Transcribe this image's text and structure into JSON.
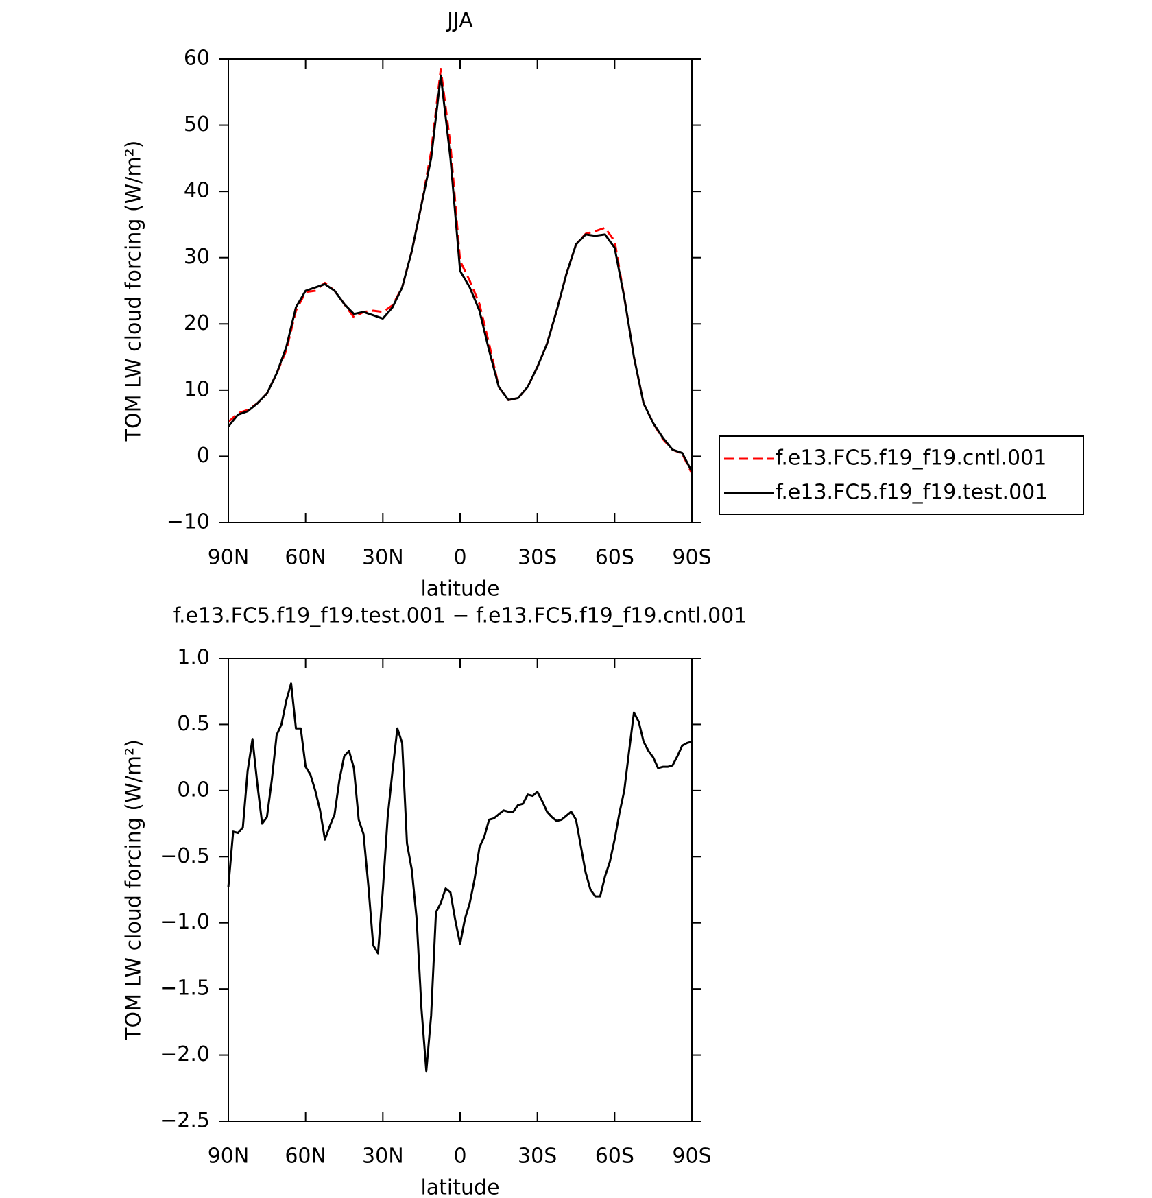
{
  "chart_data": [
    {
      "type": "line",
      "title": "JJA",
      "x_label": "latitude",
      "y_label": "TOM LW cloud forcing (W/m²)",
      "x": [
        90,
        86.25,
        82.5,
        78.75,
        75,
        71.25,
        67.5,
        63.75,
        60,
        56.25,
        52.5,
        48.75,
        45,
        41.25,
        37.5,
        33.75,
        30,
        26.25,
        22.5,
        18.75,
        15,
        11.25,
        7.5,
        3.75,
        0,
        -3.75,
        -7.5,
        -11.25,
        -15,
        -18.75,
        -22.5,
        -26.25,
        -30,
        -33.75,
        -37.5,
        -41.25,
        -45,
        -48.75,
        -52.5,
        -56.25,
        -60,
        -63.75,
        -67.5,
        -71.25,
        -75,
        -78.75,
        -82.5,
        -86.25,
        -90
      ],
      "series": [
        {
          "name": "f.e13.FC5.f19_f19.cntl.001",
          "color": "#ff0000",
          "dash": "dashed",
          "values": [
            5.2,
            6.5,
            7,
            8,
            9.5,
            12.5,
            16,
            22,
            24.8,
            25,
            26.2,
            25,
            23,
            21,
            21.8,
            22,
            21.8,
            22.8,
            25.5,
            31,
            38,
            46,
            58.5,
            47,
            29.5,
            26.5,
            23,
            17,
            10.5,
            8.5,
            8.8,
            10.5,
            13.5,
            17,
            22,
            27.5,
            32,
            33.6,
            34,
            34.5,
            32.5,
            24,
            15,
            8,
            5,
            2.6,
            1,
            0.4,
            -2.6
          ]
        },
        {
          "name": "f.e13.FC5.f19_f19.test.001",
          "color": "#000000",
          "dash": "solid",
          "values": [
            4.5,
            6.3,
            6.8,
            8,
            9.5,
            12.5,
            16.5,
            22.5,
            25,
            25.5,
            26,
            25,
            23,
            21.5,
            21.8,
            21.3,
            20.8,
            22.5,
            25.5,
            31,
            38,
            45,
            57.5,
            45,
            28,
            25.5,
            22,
            16,
            10.5,
            8.5,
            8.8,
            10.5,
            13.5,
            17,
            22,
            27.5,
            32,
            33.5,
            33.3,
            33.5,
            31.5,
            24,
            15,
            8,
            5,
            2.8,
            1,
            0.5,
            -2.3
          ]
        }
      ],
      "xlim": [
        90,
        -90
      ],
      "xticks": [
        {
          "value": 90,
          "label": "90N"
        },
        {
          "value": 60,
          "label": "60N"
        },
        {
          "value": 30,
          "label": "30N"
        },
        0,
        {
          "value": -30,
          "label": "30S"
        },
        {
          "value": -60,
          "label": "60S"
        },
        {
          "value": -90,
          "label": "90S"
        }
      ],
      "ylim": [
        -10,
        60
      ],
      "yticks": [
        {
          "value": -10,
          "label": "−10"
        },
        0,
        10,
        20,
        30,
        40,
        50,
        60
      ],
      "legend": "right"
    },
    {
      "type": "line",
      "title": "f.e13.FC5.f19_f19.test.001 − f.e13.FC5.f19_f19.cntl.001",
      "x_label": "latitude",
      "y_label": "TOM LW cloud forcing (W/m²)",
      "x": [
        90,
        88.125,
        86.25,
        84.375,
        82.5,
        80.625,
        78.75,
        76.875,
        75,
        73.125,
        71.25,
        69.375,
        67.5,
        65.625,
        63.75,
        61.875,
        60,
        58.125,
        56.25,
        54.375,
        52.5,
        50.625,
        48.75,
        46.875,
        45,
        43.125,
        41.25,
        39.375,
        37.5,
        35.625,
        33.75,
        31.875,
        30,
        28.125,
        26.25,
        24.375,
        22.5,
        20.625,
        18.75,
        16.875,
        15,
        13.125,
        11.25,
        9.375,
        7.5,
        5.625,
        3.75,
        1.875,
        0,
        -1.875,
        -3.75,
        -5.625,
        -7.5,
        -9.375,
        -11.25,
        -13.125,
        -15,
        -16.875,
        -18.75,
        -20.625,
        -22.5,
        -24.375,
        -26.25,
        -28.125,
        -30,
        -31.875,
        -33.75,
        -35.625,
        -37.5,
        -39.375,
        -41.25,
        -43.125,
        -45,
        -46.875,
        -48.75,
        -50.625,
        -52.5,
        -54.375,
        -56.25,
        -58.125,
        -60,
        -61.875,
        -63.75,
        -65.625,
        -67.5,
        -69.375,
        -71.25,
        -73.125,
        -75,
        -76.875,
        -78.75,
        -80.625,
        -82.5,
        -84.375,
        -86.25,
        -88.125,
        -90
      ],
      "values": [
        -0.73,
        -0.31,
        -0.32,
        -0.28,
        0.15,
        0.39,
        0.05,
        -0.25,
        -0.2,
        0.08,
        0.42,
        0.5,
        0.68,
        0.81,
        0.47,
        0.47,
        0.18,
        0.12,
        0.0,
        -0.15,
        -0.37,
        -0.27,
        -0.18,
        0.08,
        0.26,
        0.3,
        0.17,
        -0.22,
        -0.33,
        -0.72,
        -1.17,
        -1.23,
        -0.75,
        -0.2,
        0.15,
        0.47,
        0.36,
        -0.4,
        -0.6,
        -0.97,
        -1.65,
        -2.12,
        -1.7,
        -0.92,
        -0.85,
        -0.74,
        -0.77,
        -0.98,
        -1.16,
        -0.97,
        -0.85,
        -0.67,
        -0.43,
        -0.35,
        -0.22,
        -0.21,
        -0.18,
        -0.15,
        -0.16,
        -0.16,
        -0.11,
        -0.1,
        -0.03,
        -0.04,
        -0.01,
        -0.08,
        -0.16,
        -0.2,
        -0.23,
        -0.22,
        -0.19,
        -0.16,
        -0.22,
        -0.42,
        -0.62,
        -0.75,
        -0.8,
        -0.8,
        -0.65,
        -0.54,
        -0.37,
        -0.17,
        0.0,
        0.3,
        0.59,
        0.52,
        0.37,
        0.3,
        0.25,
        0.17,
        0.18,
        0.18,
        0.19,
        0.26,
        0.34,
        0.36,
        0.37
      ],
      "color": "#000000",
      "xlim": [
        90,
        -90
      ],
      "xticks": [
        {
          "value": 90,
          "label": "90N"
        },
        {
          "value": 60,
          "label": "60N"
        },
        {
          "value": 30,
          "label": "30N"
        },
        0,
        {
          "value": -30,
          "label": "30S"
        },
        {
          "value": -60,
          "label": "60S"
        },
        {
          "value": -90,
          "label": "90S"
        }
      ],
      "ylim": [
        -2.5,
        1.0
      ],
      "yticks": [
        {
          "value": -2.5,
          "label": "−2.5"
        },
        {
          "value": -2.0,
          "label": "−2.0"
        },
        {
          "value": -1.5,
          "label": "−1.5"
        },
        {
          "value": -1.0,
          "label": "−1.0"
        },
        {
          "value": -0.5,
          "label": "−0.5"
        },
        {
          "value": 0.0,
          "label": "0.0"
        },
        {
          "value": 0.5,
          "label": "0.5"
        },
        {
          "value": 1.0,
          "label": "1.0"
        }
      ]
    }
  ]
}
